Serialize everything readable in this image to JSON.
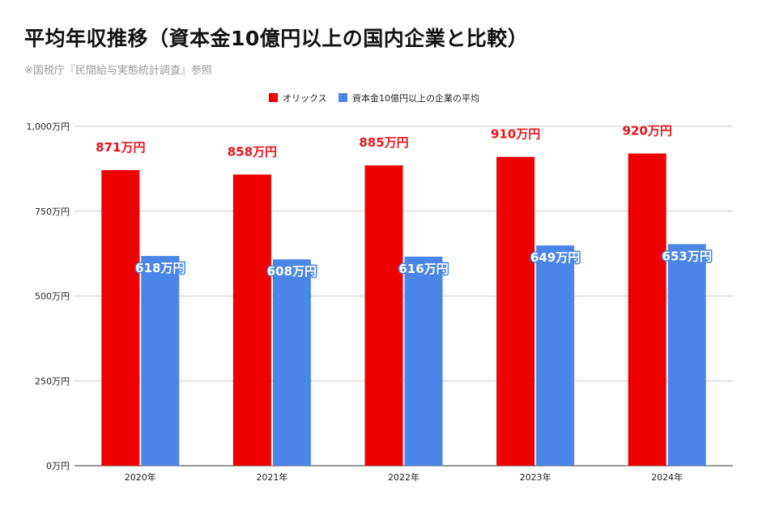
{
  "title": "平均年収推移（資本金10億円以上の国内企業と比較）",
  "subtitle": "※国税庁『民間給与実態統計調査』参照",
  "colors": {
    "series_a": "#ee0000",
    "series_b": "#4a86e8",
    "label_a": "#e8141b",
    "grid": "#cccccc"
  },
  "chart_data": {
    "type": "bar",
    "categories": [
      "2020年",
      "2021年",
      "2022年",
      "2023年",
      "2024年"
    ],
    "series": [
      {
        "name": "オリックス",
        "values": [
          871,
          858,
          885,
          910,
          920
        ],
        "labels": [
          "871万円",
          "858万円",
          "885万円",
          "910万円",
          "920万円"
        ]
      },
      {
        "name": "資本金10億円以上の企業の平均",
        "values": [
          618,
          608,
          616,
          649,
          653
        ],
        "labels": [
          "618万円",
          "608万円",
          "616万円",
          "649万円",
          "653万円"
        ]
      }
    ],
    "ylim": [
      0,
      1000
    ],
    "yticks": [
      {
        "value": 0,
        "label": "0万円"
      },
      {
        "value": 250,
        "label": "250万円"
      },
      {
        "value": 500,
        "label": "500万円"
      },
      {
        "value": 750,
        "label": "750万円"
      },
      {
        "value": 1000,
        "label": "1,000万円"
      }
    ],
    "grid": true,
    "legend_position": "top-center"
  }
}
